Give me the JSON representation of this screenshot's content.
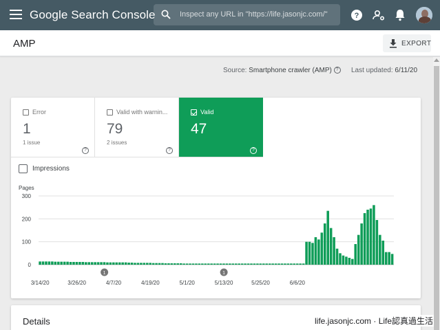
{
  "header": {
    "app_title": "Google Search Console",
    "search_placeholder": "Inspect any URL in \"https://life.jasonjc.com/\""
  },
  "page": {
    "title": "AMP",
    "export_label": "EXPORT"
  },
  "source_row": {
    "source_prefix": "Source:",
    "source_value": "Smartphone crawler (AMP)",
    "updated_prefix": "Last updated:",
    "updated_value": "6/11/20"
  },
  "tiles": [
    {
      "label": "Error",
      "count": "1",
      "sub": "1 issue"
    },
    {
      "label": "Valid with warnin...",
      "count": "79",
      "sub": "2 issues"
    },
    {
      "label": "Valid",
      "count": "47",
      "sub": ""
    }
  ],
  "impressions_label": "Impressions",
  "colors": {
    "accent_valid": "#0f9d58",
    "header_bg": "#455a64"
  },
  "chart_data": {
    "type": "bar",
    "ylabel": "Pages",
    "ylim": [
      0,
      300
    ],
    "yticks": [
      "0",
      "100",
      "200",
      "300"
    ],
    "xtick_labels": [
      "3/14/20",
      "3/26/20",
      "4/7/20",
      "4/19/20",
      "5/1/20",
      "5/13/20",
      "5/25/20",
      "6/6/20"
    ],
    "annotations": [
      {
        "date": "4/4/20",
        "label": "1"
      },
      {
        "date": "5/13/20",
        "label": "1"
      }
    ],
    "series": [
      {
        "values": [
          14,
          14,
          14,
          14,
          14,
          13,
          13,
          13,
          13,
          13,
          12,
          12,
          12,
          12,
          12,
          11,
          11,
          11,
          11,
          11,
          11,
          11,
          10,
          10,
          10,
          10,
          10,
          10,
          10,
          9,
          9,
          8,
          8,
          8,
          8,
          8,
          8,
          7,
          7,
          7,
          7,
          6,
          6,
          6,
          6,
          6,
          6,
          5,
          5,
          5,
          5,
          5,
          5,
          5,
          5,
          5,
          5,
          5,
          5,
          5,
          5,
          5,
          5,
          5,
          5,
          5,
          5,
          5,
          5,
          5,
          5,
          5,
          5,
          5,
          5,
          5,
          5,
          5,
          5,
          5,
          5,
          5,
          5,
          5,
          5,
          5,
          5,
          100,
          100,
          95,
          120,
          110,
          140,
          180,
          235,
          160,
          120,
          70,
          50,
          40,
          35,
          30,
          25,
          90,
          130,
          180,
          225,
          240,
          245,
          260,
          195,
          130,
          105,
          55,
          55,
          47
        ]
      }
    ]
  },
  "details_title": "Details",
  "watermark": "life.jasonjc.com · Life認真過生活"
}
